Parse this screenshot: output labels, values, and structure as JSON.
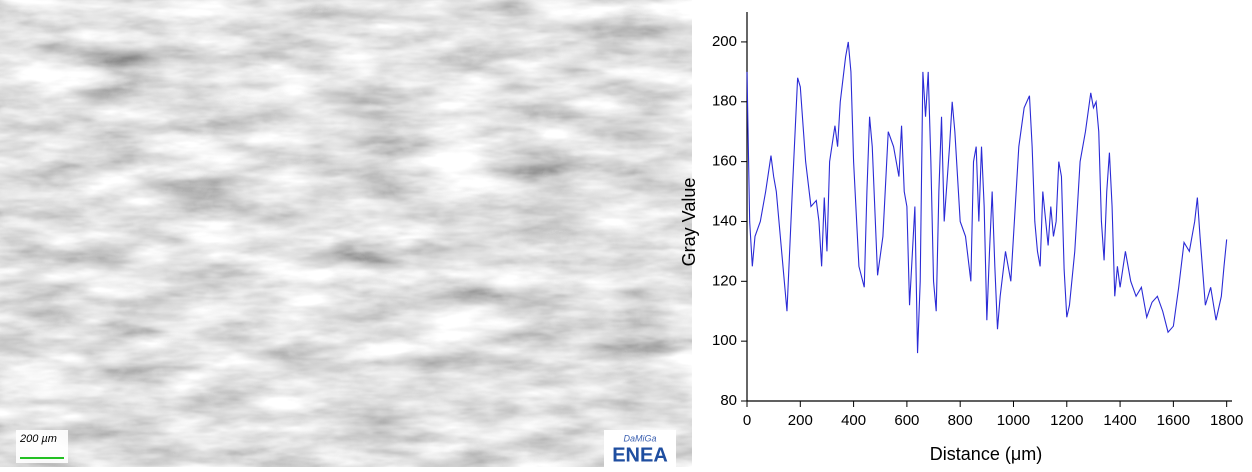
{
  "image": {
    "scale_label": "200 µm",
    "logo_top": "DaMiGa",
    "logo": "ENEA"
  },
  "chart_data": {
    "type": "line",
    "color": "#2b2bd6",
    "x_label": "Distance (μm)",
    "y_label": "Gray Value",
    "xlim": [
      0,
      1820
    ],
    "ylim": [
      80,
      210
    ],
    "xticks": [
      0,
      200,
      400,
      600,
      800,
      1000,
      1200,
      1400,
      1600,
      1800
    ],
    "yticks": [
      80,
      100,
      120,
      140,
      160,
      180,
      200
    ],
    "x": [
      0,
      10,
      20,
      30,
      50,
      70,
      90,
      100,
      110,
      130,
      150,
      170,
      190,
      200,
      220,
      240,
      260,
      270,
      280,
      290,
      300,
      310,
      330,
      340,
      350,
      370,
      380,
      390,
      400,
      420,
      440,
      450,
      460,
      470,
      490,
      510,
      530,
      550,
      570,
      580,
      590,
      600,
      610,
      630,
      640,
      650,
      660,
      670,
      680,
      690,
      700,
      710,
      720,
      730,
      740,
      760,
      770,
      780,
      790,
      800,
      820,
      840,
      850,
      860,
      870,
      880,
      890,
      900,
      910,
      920,
      930,
      940,
      950,
      970,
      990,
      1000,
      1020,
      1040,
      1060,
      1070,
      1080,
      1090,
      1100,
      1110,
      1130,
      1140,
      1150,
      1160,
      1170,
      1180,
      1190,
      1200,
      1210,
      1230,
      1250,
      1270,
      1290,
      1300,
      1310,
      1320,
      1330,
      1340,
      1350,
      1360,
      1370,
      1380,
      1390,
      1400,
      1420,
      1440,
      1460,
      1480,
      1500,
      1520,
      1540,
      1560,
      1580,
      1600,
      1620,
      1640,
      1660,
      1680,
      1690,
      1700,
      1720,
      1740,
      1760,
      1780,
      1790,
      1800
    ],
    "values": [
      190,
      140,
      125,
      135,
      140,
      150,
      162,
      155,
      150,
      130,
      110,
      150,
      188,
      185,
      160,
      145,
      147,
      140,
      125,
      148,
      130,
      160,
      172,
      165,
      180,
      195,
      200,
      190,
      160,
      125,
      118,
      150,
      175,
      165,
      122,
      135,
      170,
      165,
      155,
      172,
      150,
      145,
      112,
      145,
      96,
      120,
      190,
      175,
      190,
      160,
      120,
      110,
      150,
      175,
      140,
      165,
      180,
      170,
      155,
      140,
      135,
      120,
      160,
      165,
      140,
      165,
      145,
      107,
      130,
      150,
      125,
      104,
      115,
      130,
      120,
      135,
      165,
      178,
      182,
      165,
      140,
      130,
      125,
      150,
      132,
      145,
      135,
      140,
      160,
      155,
      124,
      108,
      112,
      130,
      160,
      170,
      183,
      178,
      180,
      170,
      140,
      127,
      150,
      163,
      145,
      115,
      125,
      118,
      130,
      120,
      115,
      118,
      108,
      113,
      115,
      110,
      103,
      105,
      118,
      133,
      130,
      140,
      148,
      135,
      112,
      118,
      107,
      115,
      125,
      134
    ]
  }
}
